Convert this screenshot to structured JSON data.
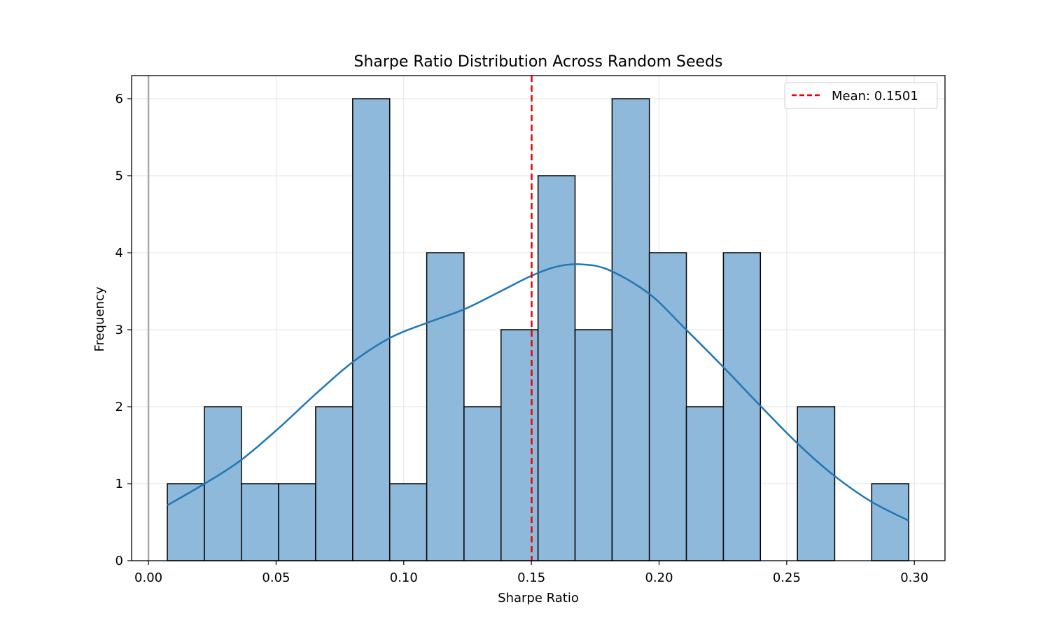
{
  "chart_data": {
    "type": "bar",
    "title": "Sharpe Ratio Distribution Across Random Seeds",
    "xlabel": "Sharpe Ratio",
    "ylabel": "Frequency",
    "xlim": [
      -0.0066,
      0.312
    ],
    "ylim": [
      0,
      6.3
    ],
    "x_ticks": [
      "0.00",
      "0.05",
      "0.10",
      "0.15",
      "0.20",
      "0.25",
      "0.30"
    ],
    "x_tick_values": [
      0.0,
      0.05,
      0.1,
      0.15,
      0.2,
      0.25,
      0.3
    ],
    "y_ticks": [
      "0",
      "1",
      "2",
      "3",
      "4",
      "5",
      "6"
    ],
    "y_tick_values": [
      0,
      1,
      2,
      3,
      4,
      5,
      6
    ],
    "grid": true,
    "bin_edges": [
      0.0074,
      0.0219,
      0.0364,
      0.051,
      0.0655,
      0.08,
      0.0945,
      0.109,
      0.1236,
      0.1381,
      0.1526,
      0.1671,
      0.1816,
      0.1962,
      0.2107,
      0.2252,
      0.2397,
      0.2542,
      0.2688,
      0.2833,
      0.2978
    ],
    "counts": [
      1,
      2,
      1,
      1,
      2,
      6,
      1,
      4,
      2,
      3,
      5,
      3,
      6,
      4,
      2,
      4,
      0,
      2,
      0,
      1
    ],
    "bar_color": "#8fb9da",
    "bar_edge_color": "#000000",
    "kde": {
      "color": "#1f77b4",
      "x": [
        0.0074,
        0.022,
        0.036,
        0.051,
        0.065,
        0.08,
        0.095,
        0.11,
        0.124,
        0.138,
        0.15,
        0.16,
        0.169,
        0.18,
        0.196,
        0.21,
        0.225,
        0.24,
        0.254,
        0.268,
        0.283,
        0.2978
      ],
      "y": [
        0.72,
        1.0,
        1.3,
        1.72,
        2.15,
        2.58,
        2.9,
        3.1,
        3.27,
        3.5,
        3.7,
        3.82,
        3.85,
        3.78,
        3.47,
        3.02,
        2.52,
        2.0,
        1.53,
        1.12,
        0.77,
        0.52
      ]
    },
    "zero_line": {
      "x": 0.0,
      "color": "#aaaaaa"
    },
    "mean_line": {
      "x": 0.1501,
      "color": "#ee0000"
    },
    "legend": {
      "position": "top-right",
      "label": "Mean: 0.1501"
    }
  }
}
